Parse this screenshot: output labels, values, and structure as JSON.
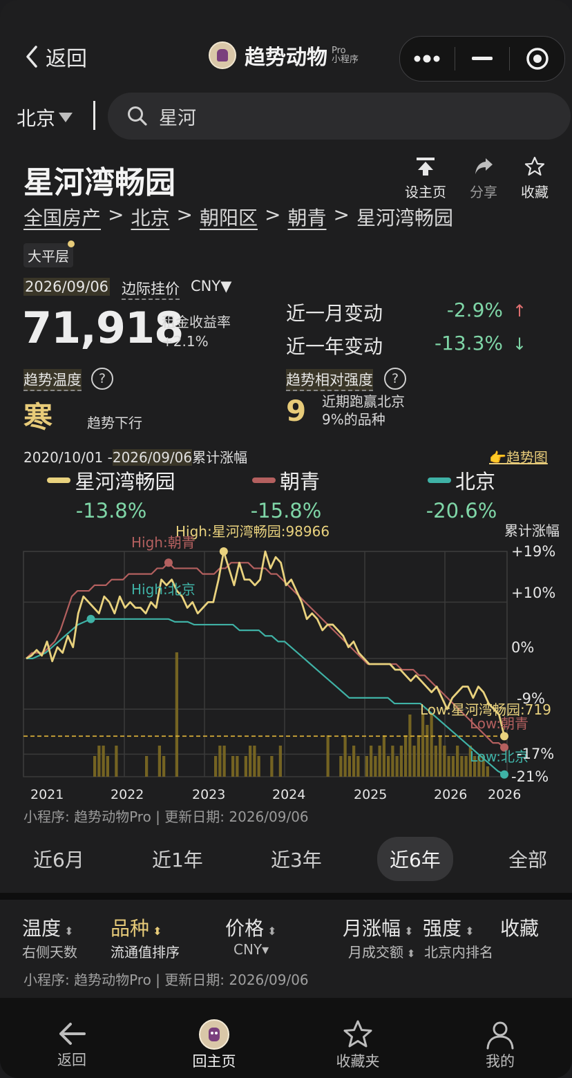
{
  "nav": {
    "back_label": "返回",
    "app_name": "趋势动物",
    "app_badge": "Pro",
    "app_sub": "小程序"
  },
  "search": {
    "city": "北京",
    "query": "星河"
  },
  "property": {
    "title": "星河湾畅园",
    "actions": [
      {
        "label": "设主页",
        "icon": "pin-top-icon"
      },
      {
        "label": "分享",
        "icon": "share-icon"
      },
      {
        "label": "收藏",
        "icon": "star-icon"
      }
    ],
    "breadcrumb": [
      "全国房产",
      "北京",
      "朝阳区",
      "朝青",
      "星河湾畅园"
    ],
    "tag": "大平层"
  },
  "price": {
    "date": "2026/09/06",
    "type_label": "边际挂价",
    "currency": "CNY▼",
    "value": "71,918",
    "yield_label": "租金收益率",
    "yield_value": "+2.1%"
  },
  "changes": [
    {
      "label": "近一月变动",
      "value": "-2.9%",
      "arrow": "↑",
      "arrow_color": "#e07070"
    },
    {
      "label": "近一年变动",
      "value": "-13.3%",
      "arrow": "↓",
      "arrow_color": "#7fd6a7"
    }
  ],
  "temperature": {
    "label": "趋势温度",
    "value": "寒",
    "desc": "趋势下行"
  },
  "strength": {
    "label": "趋势相对强度",
    "value": "9",
    "desc_line1": "近期跑赢北京",
    "desc_line2": "9%的品种"
  },
  "chart_header": {
    "range_start": "2020/10/01 -",
    "range_end": "2026/09/06",
    "range_suffix": "累计涨幅",
    "trend_link": "👉趋势图",
    "cum_label": "累计涨幅"
  },
  "legend": [
    {
      "name": "星河湾畅园",
      "value": "-13.8%",
      "color": "#e9d27e"
    },
    {
      "name": "朝青",
      "value": "-15.8%",
      "color": "#b4605f"
    },
    {
      "name": "北京",
      "value": "-20.6%",
      "color": "#3fb2a6"
    }
  ],
  "chart_data": {
    "type": "line",
    "ylabel": "累计涨幅",
    "y_ticks": [
      "+19%",
      "+10%",
      "0%",
      "-9%",
      "-17%",
      "-21%"
    ],
    "x_ticks": [
      "2021",
      "2022",
      "2023",
      "2024",
      "2025",
      "2026",
      "2026"
    ],
    "ylim": [
      -21,
      19
    ],
    "reference_line": -13.8,
    "annotations": [
      {
        "text": "High:星河湾畅园:98966",
        "series": "星河湾畅园"
      },
      {
        "text": "High:朝青",
        "series": "朝青"
      },
      {
        "text": "High:北京",
        "series": "北京"
      },
      {
        "text": "Low:星河湾畅园:719",
        "series": "星河湾畅园"
      },
      {
        "text": "Low:朝青",
        "series": "朝青"
      },
      {
        "text": "Low:北京",
        "series": "北京"
      }
    ],
    "series": [
      {
        "name": "星河湾畅园",
        "color": "#e9d27e",
        "values": [
          0,
          0.5,
          1.5,
          0.5,
          3,
          -0.5,
          2,
          1,
          4,
          2,
          8,
          11,
          10,
          9,
          8,
          11,
          10,
          8,
          11,
          9,
          10,
          9,
          9,
          8,
          10,
          9,
          14,
          13,
          14,
          12,
          11,
          9,
          10,
          8,
          9,
          10,
          10,
          14,
          19,
          16,
          13,
          17,
          14,
          14,
          13,
          14,
          19,
          16,
          18,
          17,
          13,
          14,
          12,
          10,
          7,
          8,
          7,
          5,
          6,
          6,
          5,
          4,
          2,
          3,
          1,
          0,
          -1,
          -1,
          -1,
          -1,
          -1,
          -2,
          -2,
          -3,
          -4,
          -3,
          -4,
          -5,
          -6,
          -5,
          -7,
          -9,
          -7,
          -6,
          -5,
          -5,
          -7,
          -5,
          -6,
          -8,
          -9,
          -10,
          -13.8
        ]
      },
      {
        "name": "朝青",
        "color": "#b4605f",
        "values": [
          0,
          1,
          1,
          1,
          2,
          3,
          5,
          8,
          11,
          12,
          12,
          12,
          13,
          13,
          13,
          14,
          14,
          14,
          15,
          15,
          15,
          15,
          15,
          16,
          16,
          17,
          16,
          16,
          16,
          16,
          16,
          15,
          15,
          15,
          16,
          16,
          17,
          17,
          17,
          17,
          16,
          16,
          16,
          15,
          15,
          14,
          13,
          12,
          11,
          10,
          9,
          8,
          7,
          6,
          5,
          4,
          3,
          2,
          1,
          0,
          -1,
          -1,
          -1,
          -1,
          -1,
          -1,
          -2,
          -2,
          -2,
          -3,
          -3,
          -4,
          -5,
          -6,
          -7,
          -8,
          -9,
          -10,
          -11,
          -12,
          -13,
          -14,
          -15,
          -15,
          -15.8
        ]
      },
      {
        "name": "北京",
        "color": "#3fb2a6",
        "values": [
          0,
          0,
          0.5,
          1,
          2,
          3,
          4,
          5,
          6,
          6.5,
          7,
          7,
          7,
          7,
          7,
          7,
          7,
          7,
          7,
          7,
          7,
          7,
          7,
          6.5,
          6.5,
          6.5,
          6,
          6,
          6,
          6,
          6,
          6,
          6,
          5,
          5,
          5,
          5,
          4,
          4,
          3,
          3,
          2,
          1,
          0,
          -1,
          -2,
          -3,
          -4,
          -5,
          -6,
          -7,
          -7,
          -7,
          -7,
          -7,
          -7,
          -7,
          -8,
          -8,
          -8,
          -8,
          -8,
          -9,
          -10,
          -11,
          -12,
          -13,
          -14,
          -15,
          -16,
          -17,
          -18,
          -19,
          -20,
          -20.6
        ]
      }
    ],
    "volume": [
      0,
      0,
      0,
      0,
      0,
      0,
      0,
      0,
      0,
      0,
      0,
      0,
      0,
      0,
      0,
      0,
      2,
      3,
      3,
      2,
      0,
      3,
      0,
      0,
      0,
      0,
      0,
      0,
      2,
      0,
      0,
      3,
      2,
      0,
      0,
      12,
      0,
      0,
      0,
      0,
      0,
      0,
      0,
      0,
      2,
      3,
      3,
      0,
      2,
      2,
      0,
      2,
      3,
      3,
      2,
      0,
      0,
      2,
      0,
      3,
      0,
      0,
      0,
      0,
      0,
      0,
      0,
      0,
      0,
      0,
      4,
      0,
      0,
      2,
      4,
      2,
      3,
      2,
      0,
      2,
      3,
      2,
      3,
      4,
      2,
      3,
      2,
      3,
      4,
      6,
      3,
      4,
      6,
      5,
      6,
      3,
      4,
      3,
      2,
      2,
      3,
      2,
      2,
      3,
      2,
      2,
      2,
      1,
      0,
      0,
      0,
      0
    ]
  },
  "chart_footnote": "小程序: 趋势动物Pro | 更新日期: 2026/09/06",
  "periods": [
    {
      "label": "近6月"
    },
    {
      "label": "近1年"
    },
    {
      "label": "近3年"
    },
    {
      "label": "近6年",
      "active": true
    },
    {
      "label": "全部"
    }
  ],
  "sort_columns": [
    {
      "head": "温度",
      "sub": "右侧天数",
      "sortable": true,
      "active": false
    },
    {
      "head": "品种",
      "sub": "流通值排序",
      "sortable": true,
      "active": true
    },
    {
      "head": "价格",
      "sub": "CNY▾",
      "sortable": true,
      "active": false
    },
    {
      "head": "月涨幅",
      "sub": "月成交额",
      "sortable": true,
      "active": false
    },
    {
      "head": "强度",
      "sub": "北京内排名",
      "sortable": true,
      "active": false
    },
    {
      "head": "收藏",
      "sub": "",
      "sortable": false,
      "active": false
    }
  ],
  "list_footnote": "小程序: 趋势动物Pro | 更新日期: 2026/09/06",
  "tabbar": [
    {
      "label": "返回",
      "icon": "back-arrow-icon"
    },
    {
      "label": "回主页",
      "icon": "home-avatar-icon",
      "active": true
    },
    {
      "label": "收藏夹",
      "icon": "star-icon"
    },
    {
      "label": "我的",
      "icon": "user-icon"
    }
  ]
}
